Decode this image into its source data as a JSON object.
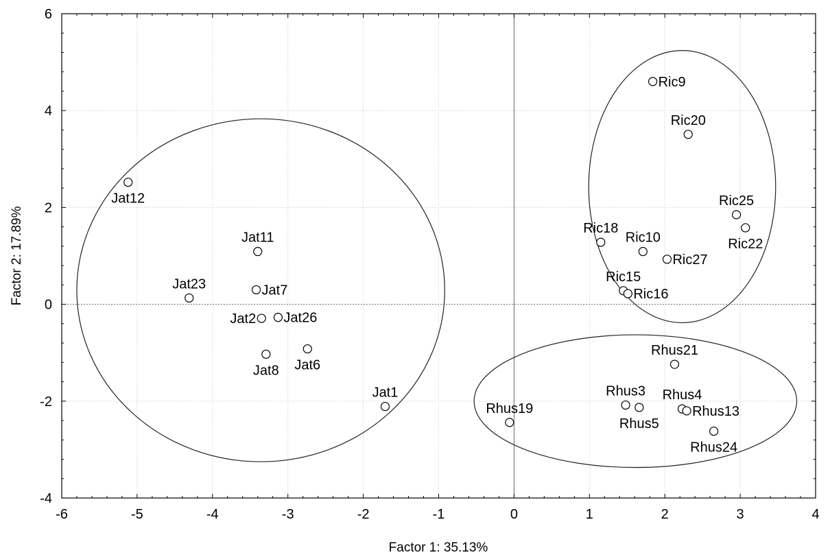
{
  "chart_data": {
    "type": "scatter",
    "xlabel": "Factor 1: 35.13%",
    "ylabel": "Factor 2: 17.89%",
    "xlim": [
      -6,
      4
    ],
    "ylim": [
      -4,
      6
    ],
    "xticks": [
      -6,
      -5,
      -4,
      -3,
      -2,
      -1,
      0,
      1,
      2,
      3,
      4
    ],
    "yticks": [
      -4,
      -2,
      0,
      2,
      4,
      6
    ],
    "grid": true,
    "reference_lines": {
      "x": 0,
      "y": 0
    },
    "marker": "open-circle",
    "points": [
      {
        "label": "Jat12",
        "x": -5.12,
        "y": 2.52,
        "label_pos": "below"
      },
      {
        "label": "Jat11",
        "x": -3.4,
        "y": 1.09,
        "label_pos": "above"
      },
      {
        "label": "Jat23",
        "x": -4.31,
        "y": 0.13,
        "label_pos": "above"
      },
      {
        "label": "Jat7",
        "x": -3.42,
        "y": 0.3,
        "label_pos": "right"
      },
      {
        "label": "Jat2",
        "x": -3.35,
        "y": -0.29,
        "label_pos": "left"
      },
      {
        "label": "Jat26",
        "x": -3.13,
        "y": -0.27,
        "label_pos": "right"
      },
      {
        "label": "Jat8",
        "x": -3.29,
        "y": -1.03,
        "label_pos": "below"
      },
      {
        "label": "Jat6",
        "x": -2.74,
        "y": -0.92,
        "label_pos": "below"
      },
      {
        "label": "Jat1",
        "x": -1.71,
        "y": -2.11,
        "label_pos": "above"
      },
      {
        "label": "Ric9",
        "x": 1.84,
        "y": 4.6,
        "label_pos": "right"
      },
      {
        "label": "Ric20",
        "x": 2.31,
        "y": 3.51,
        "label_pos": "above"
      },
      {
        "label": "Ric25",
        "x": 2.95,
        "y": 1.85,
        "label_pos": "above"
      },
      {
        "label": "Ric22",
        "x": 3.07,
        "y": 1.58,
        "label_pos": "below"
      },
      {
        "label": "Ric18",
        "x": 1.15,
        "y": 1.28,
        "label_pos": "above"
      },
      {
        "label": "Ric10",
        "x": 1.71,
        "y": 1.09,
        "label_pos": "above"
      },
      {
        "label": "Ric27",
        "x": 2.03,
        "y": 0.93,
        "label_pos": "right"
      },
      {
        "label": "Ric15",
        "x": 1.45,
        "y": 0.28,
        "label_pos": "above"
      },
      {
        "label": "Ric16",
        "x": 1.51,
        "y": 0.22,
        "label_pos": "right"
      },
      {
        "label": "Rhus21",
        "x": 2.13,
        "y": -1.24,
        "label_pos": "above"
      },
      {
        "label": "Rhus3",
        "x": 1.48,
        "y": -2.08,
        "label_pos": "above"
      },
      {
        "label": "Rhus5",
        "x": 1.66,
        "y": -2.13,
        "label_pos": "below"
      },
      {
        "label": "Rhus4",
        "x": 2.23,
        "y": -2.16,
        "label_pos": "above"
      },
      {
        "label": "Rhus13",
        "x": 2.29,
        "y": -2.2,
        "label_pos": "right"
      },
      {
        "label": "Rhus24",
        "x": 2.65,
        "y": -2.62,
        "label_pos": "below"
      },
      {
        "label": "Rhus19",
        "x": -0.06,
        "y": -2.44,
        "label_pos": "above"
      }
    ],
    "ellipses": [
      {
        "cx": -3.36,
        "cy": 0.29,
        "rx": 2.44,
        "ry": 3.54
      },
      {
        "cx": 2.23,
        "cy": 2.43,
        "rx": 1.24,
        "ry": 2.81
      },
      {
        "cx": 1.61,
        "cy": -2.0,
        "rx": 2.14,
        "ry": 1.37
      }
    ]
  }
}
